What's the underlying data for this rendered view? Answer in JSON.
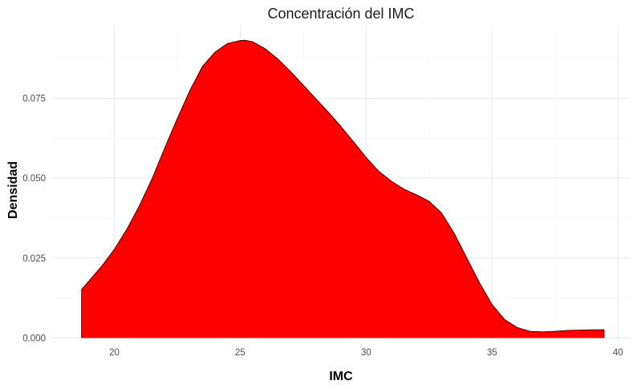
{
  "chart_data": {
    "type": "area",
    "title": "Concentración del IMC",
    "xlabel": "IMC",
    "ylabel": "Densidad",
    "xlim": [
      17.5,
      40.5
    ],
    "ylim": [
      -0.0009,
      0.0975
    ],
    "x_ticks": [
      20,
      25,
      30,
      35,
      40
    ],
    "x_tick_labels": [
      "20",
      "25",
      "30",
      "35",
      "40"
    ],
    "y_ticks": [
      0.0,
      0.025,
      0.05,
      0.075
    ],
    "y_tick_labels": [
      "0.000",
      "0.025",
      "0.050",
      "0.075"
    ],
    "grid": true,
    "fill_color": "#ff0000",
    "line_color": "#000000",
    "series": [
      {
        "x": [
          18.7,
          19.5,
          20.0,
          20.5,
          21.0,
          21.5,
          22.0,
          22.5,
          23.0,
          23.5,
          24.0,
          24.5,
          25.0,
          25.2,
          25.5,
          26.0,
          26.5,
          27.0,
          27.5,
          28.0,
          28.5,
          29.0,
          29.5,
          30.0,
          30.5,
          31.0,
          31.5,
          32.0,
          32.5,
          33.0,
          33.5,
          34.0,
          34.5,
          35.0,
          35.5,
          36.0,
          36.5,
          37.0,
          37.5,
          38.0,
          38.5,
          39.0,
          39.45
        ],
        "y": [
          0.0152,
          0.0225,
          0.0278,
          0.0341,
          0.0415,
          0.0499,
          0.0595,
          0.0687,
          0.0775,
          0.085,
          0.0895,
          0.0922,
          0.0931,
          0.0932,
          0.0927,
          0.0905,
          0.0873,
          0.0834,
          0.0792,
          0.0749,
          0.0707,
          0.0662,
          0.0614,
          0.0565,
          0.0522,
          0.0491,
          0.0466,
          0.0448,
          0.0428,
          0.0391,
          0.0327,
          0.025,
          0.0173,
          0.0105,
          0.0058,
          0.0033,
          0.0021,
          0.0019,
          0.0021,
          0.0024,
          0.0025,
          0.0026,
          0.0026
        ]
      }
    ]
  }
}
